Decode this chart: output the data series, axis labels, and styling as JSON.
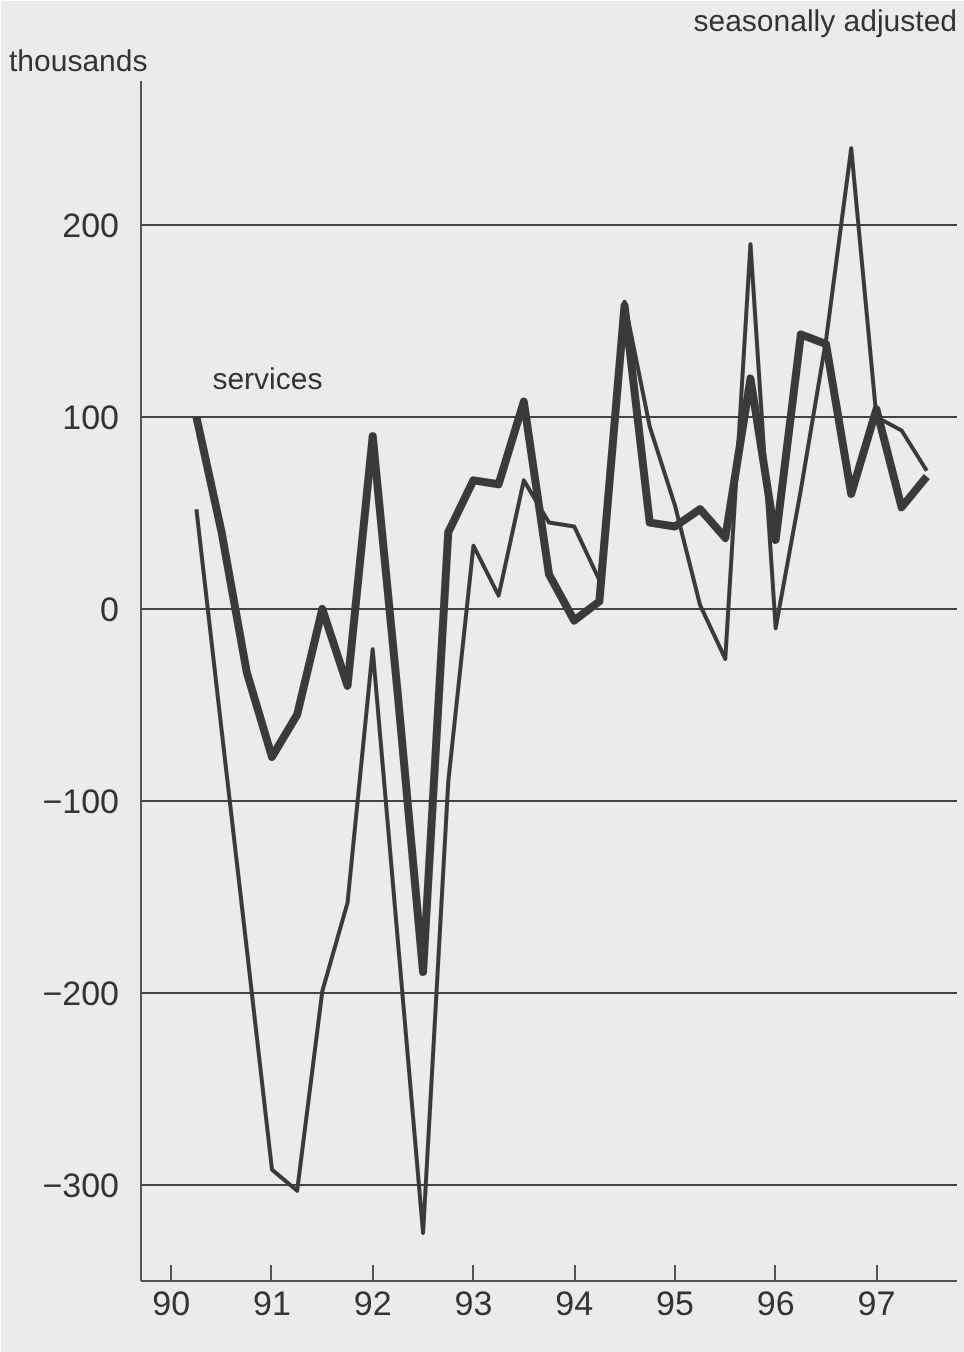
{
  "chart_data": {
    "type": "line",
    "subtitle": "seasonally adjusted",
    "ylabel": "thousands",
    "x": [
      90.25,
      90.5,
      90.75,
      91.0,
      91.25,
      91.5,
      91.75,
      92.0,
      92.25,
      92.5,
      92.75,
      93.0,
      93.25,
      93.5,
      93.75,
      94.0,
      94.25,
      94.5,
      94.75,
      95.0,
      95.25,
      95.5,
      95.75,
      96.0,
      96.25,
      96.5,
      96.75,
      97.0,
      97.25,
      97.5
    ],
    "series": [
      {
        "name": "services",
        "color": "#3a3a3a",
        "values": [
          100,
          40,
          -33,
          -77,
          -55,
          0,
          -40,
          90,
          -45,
          -189,
          40,
          67,
          65,
          108,
          18,
          -6,
          4,
          158,
          45,
          43,
          52,
          37,
          120,
          36,
          143,
          138,
          60,
          104,
          53,
          69
        ]
      },
      {
        "color": "#3a3a3a",
        "values": [
          52,
          -63,
          -177,
          -292,
          -303,
          -199,
          -153,
          -21,
          -173,
          -325,
          -90,
          33,
          7,
          67,
          45,
          43,
          15,
          160,
          95,
          54,
          2,
          -26,
          190,
          -10,
          62,
          140,
          240,
          100,
          93,
          72
        ]
      }
    ],
    "xlim": [
      89.7,
      97.8
    ],
    "ylim": [
      -350,
      275
    ],
    "xticks": [
      90,
      91,
      92,
      93,
      94,
      95,
      96,
      97
    ],
    "yticks": [
      -300,
      -200,
      -100,
      0,
      100,
      200
    ],
    "grid": "y",
    "legend": false,
    "marker": "none",
    "line_style": "solid"
  }
}
